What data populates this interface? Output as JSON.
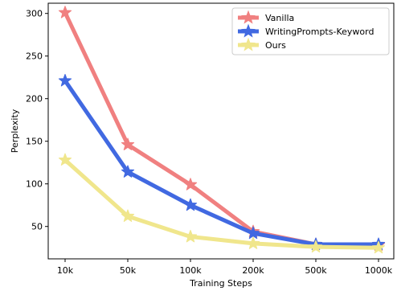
{
  "chart_data": {
    "type": "line",
    "categories": [
      "10k",
      "50k",
      "100k",
      "200k",
      "500k",
      "1000k"
    ],
    "series": [
      {
        "name": "Vanilla",
        "values": [
          301,
          146,
          99,
          44,
          29,
          28
        ],
        "color": "#f08080"
      },
      {
        "name": "WritingPrompts-Keyword",
        "values": [
          221,
          114,
          75,
          42,
          29,
          29
        ],
        "color": "#4169e1"
      },
      {
        "name": "Ours",
        "values": [
          128,
          62,
          38,
          30,
          26,
          25
        ],
        "color": "#f0e68c"
      }
    ],
    "xlabel": "Training Steps",
    "ylabel": "Perplexity",
    "ylim": [
      12,
      312
    ],
    "yticks": [
      50,
      100,
      150,
      200,
      250,
      300
    ],
    "grid": false,
    "legend_position": "top-right",
    "marker": "star"
  }
}
